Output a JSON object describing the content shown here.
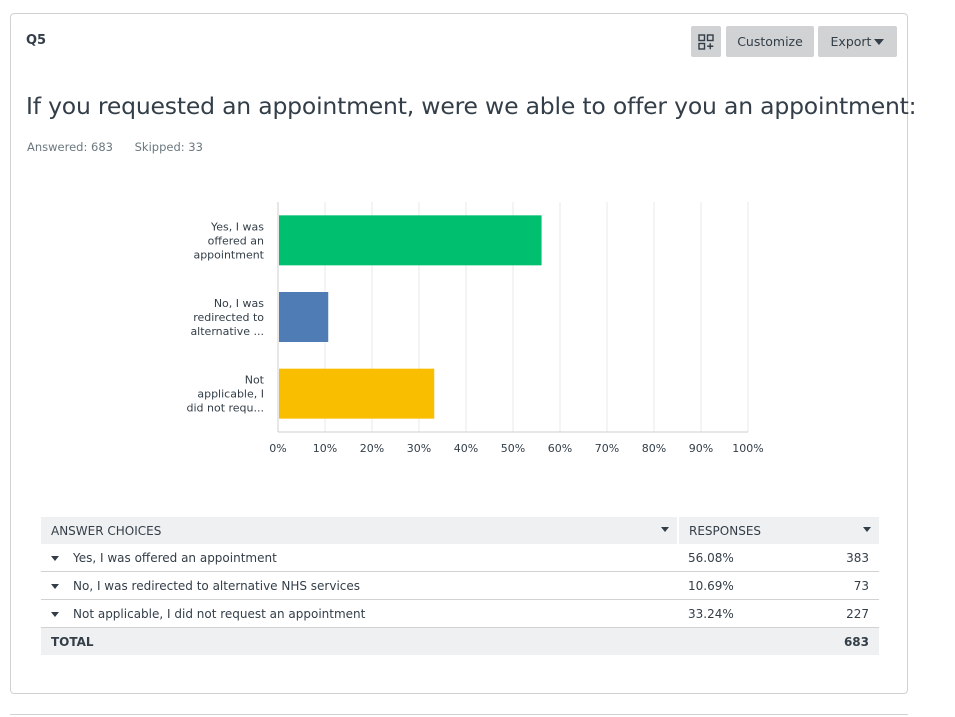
{
  "question": {
    "number": "Q5",
    "title": "If you requested an appointment, were we able to offer you an appointment:",
    "answered": "Answered: 683",
    "skipped": "Skipped: 33"
  },
  "toolbar": {
    "grid_icon": "grid-plus-icon",
    "customize_label": "Customize",
    "export_label": "Export"
  },
  "chart_data": {
    "type": "bar",
    "orientation": "horizontal",
    "categories": [
      [
        "Yes, I was",
        "offered an",
        "appointment"
      ],
      [
        "No, I was",
        "redirected to",
        "alternative ..."
      ],
      [
        "Not",
        "applicable, I",
        "did not requ..."
      ]
    ],
    "values": [
      56.08,
      10.69,
      33.24
    ],
    "colors": [
      "#00bf6f",
      "#507cb6",
      "#f9be00"
    ],
    "xlim": [
      0,
      100
    ],
    "ticks": [
      "0%",
      "10%",
      "20%",
      "30%",
      "40%",
      "50%",
      "60%",
      "70%",
      "80%",
      "90%",
      "100%"
    ],
    "grid": true
  },
  "table": {
    "headers": [
      "ANSWER CHOICES",
      "RESPONSES"
    ],
    "rows": [
      {
        "choice": "Yes, I was offered an appointment",
        "percent": "56.08%",
        "count": "383"
      },
      {
        "choice": "No, I was redirected to alternative NHS services",
        "percent": "10.69%",
        "count": "73"
      },
      {
        "choice": "Not applicable, I did not request an appointment",
        "percent": "33.24%",
        "count": "227"
      }
    ],
    "total_label": "TOTAL",
    "total_count": "683"
  }
}
